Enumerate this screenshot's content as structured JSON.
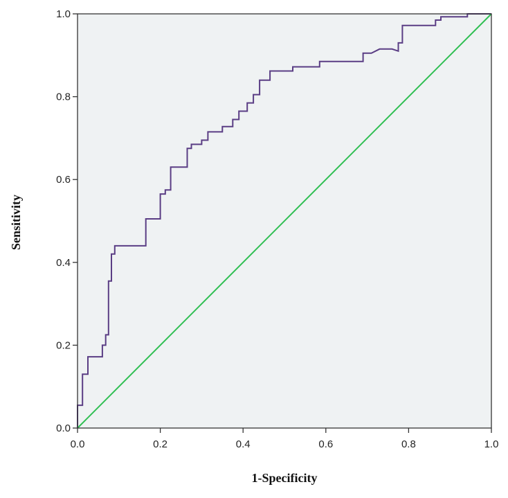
{
  "chart_data": {
    "type": "line",
    "title": "",
    "xlabel": "1-Specificity",
    "ylabel": "Sensitivity",
    "xlim": [
      0.0,
      1.0
    ],
    "ylim": [
      0.0,
      1.0
    ],
    "xticks": [
      "0.0",
      "0.2",
      "0.4",
      "0.6",
      "0.8",
      "1.0"
    ],
    "yticks": [
      "0.0",
      "0.2",
      "0.4",
      "0.6",
      "0.8",
      "1.0"
    ],
    "grid": false,
    "legend": "none",
    "colors": {
      "plot_background": "#eff2f3",
      "roc_curve": "#5a3d84",
      "reference_line": "#2fbf52",
      "axis": "#333333"
    },
    "series": [
      {
        "x": [
          0.0,
          0.0,
          0.012,
          0.012,
          0.025,
          0.025,
          0.06,
          0.06,
          0.068,
          0.068,
          0.075,
          0.075,
          0.082,
          0.082,
          0.09,
          0.09,
          0.1,
          0.1,
          0.165,
          0.165,
          0.2,
          0.2,
          0.212,
          0.212,
          0.225,
          0.225,
          0.265,
          0.265,
          0.275,
          0.275,
          0.3,
          0.3,
          0.315,
          0.315,
          0.35,
          0.35,
          0.375,
          0.375,
          0.39,
          0.39,
          0.41,
          0.41,
          0.425,
          0.425,
          0.44,
          0.44,
          0.465,
          0.465,
          0.52,
          0.52,
          0.585,
          0.585,
          0.69,
          0.69,
          0.71,
          0.73,
          0.76,
          0.775,
          0.775,
          0.785,
          0.785,
          0.865,
          0.865,
          0.878,
          0.878,
          0.942,
          0.942,
          1.0
        ],
        "y": [
          0.0,
          0.055,
          0.055,
          0.13,
          0.13,
          0.172,
          0.172,
          0.2,
          0.2,
          0.225,
          0.225,
          0.355,
          0.355,
          0.42,
          0.42,
          0.44,
          0.44,
          0.44,
          0.44,
          0.505,
          0.505,
          0.565,
          0.565,
          0.575,
          0.575,
          0.63,
          0.63,
          0.675,
          0.675,
          0.685,
          0.685,
          0.695,
          0.695,
          0.715,
          0.715,
          0.728,
          0.728,
          0.745,
          0.745,
          0.765,
          0.765,
          0.785,
          0.785,
          0.805,
          0.805,
          0.84,
          0.84,
          0.862,
          0.862,
          0.872,
          0.872,
          0.885,
          0.885,
          0.905,
          0.905,
          0.915,
          0.915,
          0.91,
          0.93,
          0.93,
          0.972,
          0.972,
          0.985,
          0.985,
          0.993,
          0.993,
          1.0,
          1.0
        ]
      },
      {
        "x": [
          0.0,
          1.0
        ],
        "y": [
          0.0,
          1.0
        ]
      }
    ]
  }
}
